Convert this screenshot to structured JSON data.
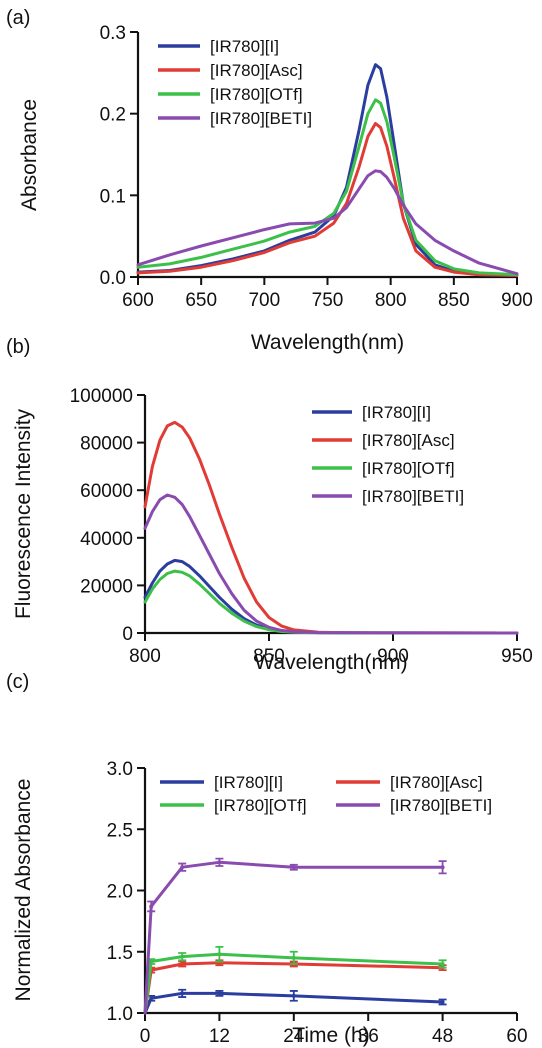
{
  "colors": {
    "blue": "#2b3ea0",
    "red": "#e03c35",
    "green": "#3cc04a",
    "purple": "#8a4bb0"
  },
  "chart_data": [
    {
      "id": "a",
      "type": "line",
      "panel_label": "(a)",
      "xlabel": "Wavelength(nm)",
      "ylabel": "Absorbance",
      "xlim": [
        600,
        900
      ],
      "ylim": [
        0,
        0.3
      ],
      "xticks": [
        600,
        650,
        700,
        750,
        800,
        850,
        900
      ],
      "yticks": [
        0.0,
        0.1,
        0.2,
        0.3
      ],
      "xtick_labels": [
        "600",
        "650",
        "700",
        "750",
        "800",
        "850",
        "900"
      ],
      "ytick_labels": [
        "0.0",
        "0.1",
        "0.2",
        "0.3"
      ],
      "legend_position": "top-left",
      "series": [
        {
          "name": "[IR780][I]",
          "color": "#2b3ea0",
          "x": [
            600,
            625,
            650,
            675,
            700,
            720,
            740,
            755,
            765,
            775,
            782,
            788,
            792,
            797,
            803,
            810,
            820,
            835,
            850,
            870,
            900
          ],
          "y": [
            0.006,
            0.008,
            0.014,
            0.022,
            0.032,
            0.045,
            0.055,
            0.075,
            0.11,
            0.18,
            0.235,
            0.26,
            0.255,
            0.22,
            0.16,
            0.09,
            0.04,
            0.015,
            0.007,
            0.003,
            0.002
          ]
        },
        {
          "name": "[IR780][Asc]",
          "color": "#e03c35",
          "x": [
            600,
            625,
            650,
            675,
            700,
            720,
            740,
            755,
            765,
            775,
            782,
            788,
            792,
            797,
            803,
            810,
            820,
            835,
            850,
            870,
            900
          ],
          "y": [
            0.005,
            0.007,
            0.012,
            0.02,
            0.03,
            0.042,
            0.05,
            0.066,
            0.09,
            0.135,
            0.172,
            0.188,
            0.183,
            0.16,
            0.12,
            0.072,
            0.032,
            0.012,
            0.006,
            0.003,
            0.002
          ]
        },
        {
          "name": "[IR780][OTf]",
          "color": "#3cc04a",
          "x": [
            600,
            625,
            650,
            675,
            700,
            720,
            740,
            755,
            765,
            775,
            782,
            788,
            792,
            797,
            803,
            810,
            820,
            835,
            850,
            870,
            900
          ],
          "y": [
            0.012,
            0.016,
            0.024,
            0.034,
            0.044,
            0.055,
            0.062,
            0.078,
            0.105,
            0.16,
            0.2,
            0.217,
            0.213,
            0.19,
            0.145,
            0.09,
            0.045,
            0.02,
            0.01,
            0.005,
            0.003
          ]
        },
        {
          "name": "[IR780][BETI]",
          "color": "#8a4bb0",
          "x": [
            600,
            625,
            650,
            675,
            700,
            720,
            740,
            755,
            765,
            775,
            782,
            788,
            792,
            797,
            803,
            810,
            820,
            835,
            850,
            870,
            900
          ],
          "y": [
            0.015,
            0.027,
            0.038,
            0.048,
            0.058,
            0.065,
            0.066,
            0.072,
            0.085,
            0.108,
            0.124,
            0.13,
            0.129,
            0.122,
            0.108,
            0.088,
            0.065,
            0.045,
            0.032,
            0.017,
            0.004
          ]
        }
      ]
    },
    {
      "id": "b",
      "type": "line",
      "panel_label": "(b)",
      "xlabel": "Wavelength(nm)",
      "ylabel": "Fluorescence Intensity",
      "xlim": [
        800,
        950
      ],
      "ylim": [
        0,
        100000
      ],
      "xticks": [
        800,
        850,
        900,
        950
      ],
      "yticks": [
        0,
        20000,
        40000,
        60000,
        80000,
        100000
      ],
      "xtick_labels": [
        "800",
        "850",
        "900",
        "950"
      ],
      "ytick_labels": [
        "0",
        "20000",
        "40000",
        "60000",
        "80000",
        "100000"
      ],
      "legend_position": "top-right",
      "series": [
        {
          "name": "[IR780][I]",
          "color": "#2b3ea0",
          "x": [
            800,
            803,
            806,
            809,
            812,
            815,
            818,
            822,
            826,
            830,
            835,
            840,
            845,
            850,
            855,
            860,
            870,
            880,
            900,
            950
          ],
          "y": [
            15000,
            21000,
            26000,
            29000,
            30500,
            30000,
            28000,
            24000,
            19500,
            15000,
            10000,
            6000,
            3300,
            1700,
            800,
            400,
            150,
            80,
            40,
            20
          ]
        },
        {
          "name": "[IR780][Asc]",
          "color": "#e03c35",
          "x": [
            800,
            803,
            806,
            809,
            812,
            815,
            818,
            822,
            826,
            830,
            835,
            840,
            845,
            850,
            855,
            860,
            870,
            880,
            900,
            950
          ],
          "y": [
            53000,
            70000,
            81000,
            87000,
            88500,
            86500,
            82000,
            73000,
            62000,
            50000,
            36000,
            23000,
            13000,
            6500,
            3000,
            1300,
            300,
            120,
            50,
            20
          ]
        },
        {
          "name": "[IR780][OTf]",
          "color": "#3cc04a",
          "x": [
            800,
            803,
            806,
            809,
            812,
            815,
            818,
            822,
            826,
            830,
            835,
            840,
            845,
            850,
            855,
            860,
            870,
            880,
            900,
            950
          ],
          "y": [
            13000,
            18500,
            22500,
            25000,
            26000,
            25500,
            24000,
            20500,
            16500,
            12500,
            8300,
            5000,
            2700,
            1400,
            650,
            320,
            120,
            60,
            30,
            15
          ]
        },
        {
          "name": "[IR780][BETI]",
          "color": "#8a4bb0",
          "x": [
            800,
            803,
            806,
            809,
            812,
            815,
            818,
            822,
            826,
            830,
            835,
            840,
            845,
            850,
            855,
            860,
            870,
            880,
            900,
            950
          ],
          "y": [
            44000,
            51000,
            56000,
            58000,
            57000,
            54000,
            49000,
            41000,
            33000,
            25000,
            16500,
            9500,
            5000,
            2400,
            1100,
            500,
            150,
            70,
            30,
            15
          ]
        }
      ]
    },
    {
      "id": "c",
      "type": "line",
      "panel_label": "(c)",
      "xlabel": "Time (h)",
      "ylabel": "Normalized Absorbance",
      "xlim": [
        0,
        60
      ],
      "ylim": [
        1.0,
        3.0
      ],
      "xticks": [
        0,
        12,
        24,
        36,
        48,
        60
      ],
      "yticks": [
        1.0,
        1.5,
        2.0,
        2.5,
        3.0
      ],
      "xtick_labels": [
        "0",
        "12",
        "24",
        "36",
        "48",
        "60"
      ],
      "ytick_labels": [
        "1.0",
        "1.5",
        "2.0",
        "2.5",
        "3.0"
      ],
      "legend_position": "top",
      "series": [
        {
          "name": "[IR780][I]",
          "color": "#2b3ea0",
          "x": [
            0,
            1,
            6,
            12,
            24,
            48
          ],
          "y": [
            1.0,
            1.12,
            1.16,
            1.16,
            1.14,
            1.09
          ],
          "err": [
            0,
            0.02,
            0.03,
            0.02,
            0.04,
            0.02
          ]
        },
        {
          "name": "[IR780][Asc]",
          "color": "#e03c35",
          "x": [
            0,
            1,
            6,
            12,
            24,
            48
          ],
          "y": [
            1.0,
            1.35,
            1.4,
            1.41,
            1.4,
            1.37
          ],
          "err": [
            0,
            0.02,
            0.02,
            0.02,
            0.02,
            0.02
          ]
        },
        {
          "name": "[IR780][OTf]",
          "color": "#3cc04a",
          "x": [
            0,
            1,
            6,
            12,
            24,
            48
          ],
          "y": [
            1.0,
            1.42,
            1.46,
            1.48,
            1.45,
            1.4
          ],
          "err": [
            0,
            0.02,
            0.03,
            0.06,
            0.05,
            0.03
          ]
        },
        {
          "name": "[IR780][BETI]",
          "color": "#8a4bb0",
          "x": [
            0,
            1,
            6,
            12,
            24,
            48
          ],
          "y": [
            1.0,
            1.87,
            2.19,
            2.23,
            2.19,
            2.19
          ],
          "err": [
            0,
            0.04,
            0.03,
            0.03,
            0.02,
            0.05
          ]
        }
      ]
    }
  ]
}
